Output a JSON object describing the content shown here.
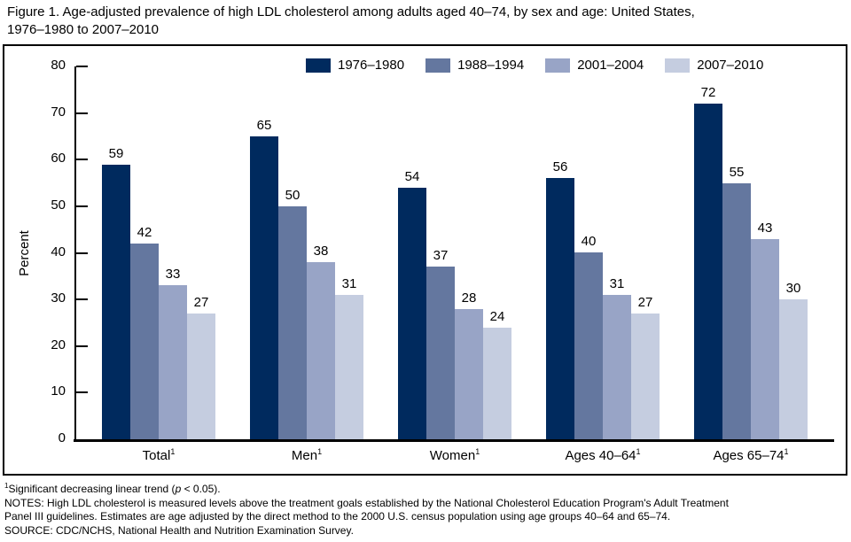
{
  "figure": {
    "title": {
      "line1": "Figure 1. Age-adjusted prevalence of high LDL cholesterol among adults aged 40–74, by sex and age: United States,",
      "line2": "1976–1980 to 2007–2010"
    }
  },
  "chart_data": {
    "type": "bar",
    "title": "Age-adjusted prevalence of high LDL cholesterol among adults aged 40–74, by sex and age: United States, 1976–1980 to 2007–2010",
    "xlabel": "",
    "ylabel": "Percent",
    "ylim": [
      0,
      80
    ],
    "ytick_step": 10,
    "grid": false,
    "legend_position": "top",
    "categories": [
      {
        "label": "Total",
        "sup": "1"
      },
      {
        "label": "Men",
        "sup": "1"
      },
      {
        "label": "Women",
        "sup": "1"
      },
      {
        "label": "Ages 40–64",
        "sup": "1"
      },
      {
        "label": "Ages 65–74",
        "sup": "1"
      }
    ],
    "series": [
      {
        "name": "1976–1980",
        "color": "#002a5e",
        "values": [
          59,
          65,
          54,
          56,
          72
        ]
      },
      {
        "name": "1988–1994",
        "color": "#64779f",
        "values": [
          42,
          50,
          37,
          40,
          55
        ]
      },
      {
        "name": "2001–2004",
        "color": "#98a4c6",
        "values": [
          33,
          38,
          28,
          31,
          43
        ]
      },
      {
        "name": "2007–2010",
        "color": "#c5cde0",
        "values": [
          27,
          31,
          24,
          27,
          30
        ]
      }
    ]
  },
  "footnotes": {
    "marker": "1",
    "trend_pre": "Significant decreasing linear trend (",
    "trend_p": "p",
    "trend_post": " < 0.05).",
    "notes_line1": "NOTES: High LDL cholesterol is measured levels above the treatment goals established by the National Cholesterol Education Program's Adult Treatment",
    "notes_line2": "Panel III guidelines. Estimates are age adjusted by the direct method to the 2000 U.S. census population using age groups 40–64 and 65–74.",
    "source": "SOURCE: CDC/NCHS, National Health and Nutrition Examination Survey."
  }
}
